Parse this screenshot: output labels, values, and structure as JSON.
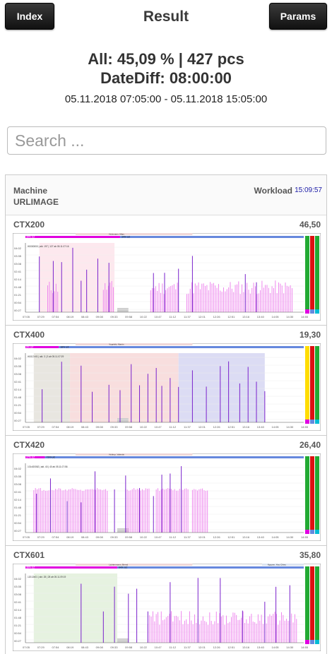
{
  "header": {
    "index_label": "Index",
    "title": "Result",
    "params_label": "Params"
  },
  "summary": {
    "line1": "All: 45,09 % | 427 pcs",
    "line2": "DateDiff: 08:00:00",
    "range": "05.11.2018 07:05:00 - 05.11.2018 15:05:00"
  },
  "search": {
    "placeholder": "Search ..."
  },
  "list_header": {
    "col1": "Machine",
    "col1_sub": "URLIMAGE",
    "col2": "Workload",
    "time": "15:09:57"
  },
  "colors": {
    "magenta": "#e000e0",
    "blue": "#6688dd",
    "pink_bar": "#ee88ee",
    "violet": "#7a22cc",
    "green": "#22aa33",
    "red": "#dd1111",
    "yellow": "#ffdd00"
  },
  "machines": [
    {
      "name": "CTX200",
      "value": "46,50",
      "operator": "Holzmann, Marc",
      "pct_label": "34% UZ",
      "left_label": "39% UZ",
      "info": "H0000000 | akt. 197 | 127 ab 05.11.07:16"
    },
    {
      "name": "CTX400",
      "value": "19,30",
      "operator": "Vogelski, Martin",
      "pct_label": "18% UZ",
      "left_label": "8% UZ",
      "info": "H0017x01 | akt. 3 | 3 ab 05.11.07:29"
    },
    {
      "name": "CTX420",
      "value": "26,40",
      "operator": "Holtrup, Valentin",
      "pct_label": "73% UZ",
      "left_label": "27% UZ",
      "info": "101xD0062 | akt. 40 | 40 ab 05.11.07:56"
    },
    {
      "name": "CTX601",
      "value": "35,80",
      "operator": "Lichtenmann, Bernd",
      "pct_label": "64% UZ",
      "left_label": "36% UZ",
      "right_operator": "Nguyen, Huu Chieu",
      "info": "12013x01 | akt. 28 | 28 ab 05.11.09:19"
    }
  ],
  "x_ticks": [
    "07:05",
    "07:29",
    "07:54",
    "08:19",
    "08:43",
    "09:08",
    "09:33",
    "09:58",
    "10:22",
    "10:47",
    "11:12",
    "11:37",
    "12:01",
    "12:26",
    "12:51",
    "13:16",
    "13:40",
    "14:05",
    "14:30",
    "14:55"
  ],
  "y_ticks": [
    "04:02",
    "03:35",
    "03:08",
    "02:41",
    "02:14",
    "01:48",
    "01:21",
    "00:54",
    "00:27"
  ]
}
